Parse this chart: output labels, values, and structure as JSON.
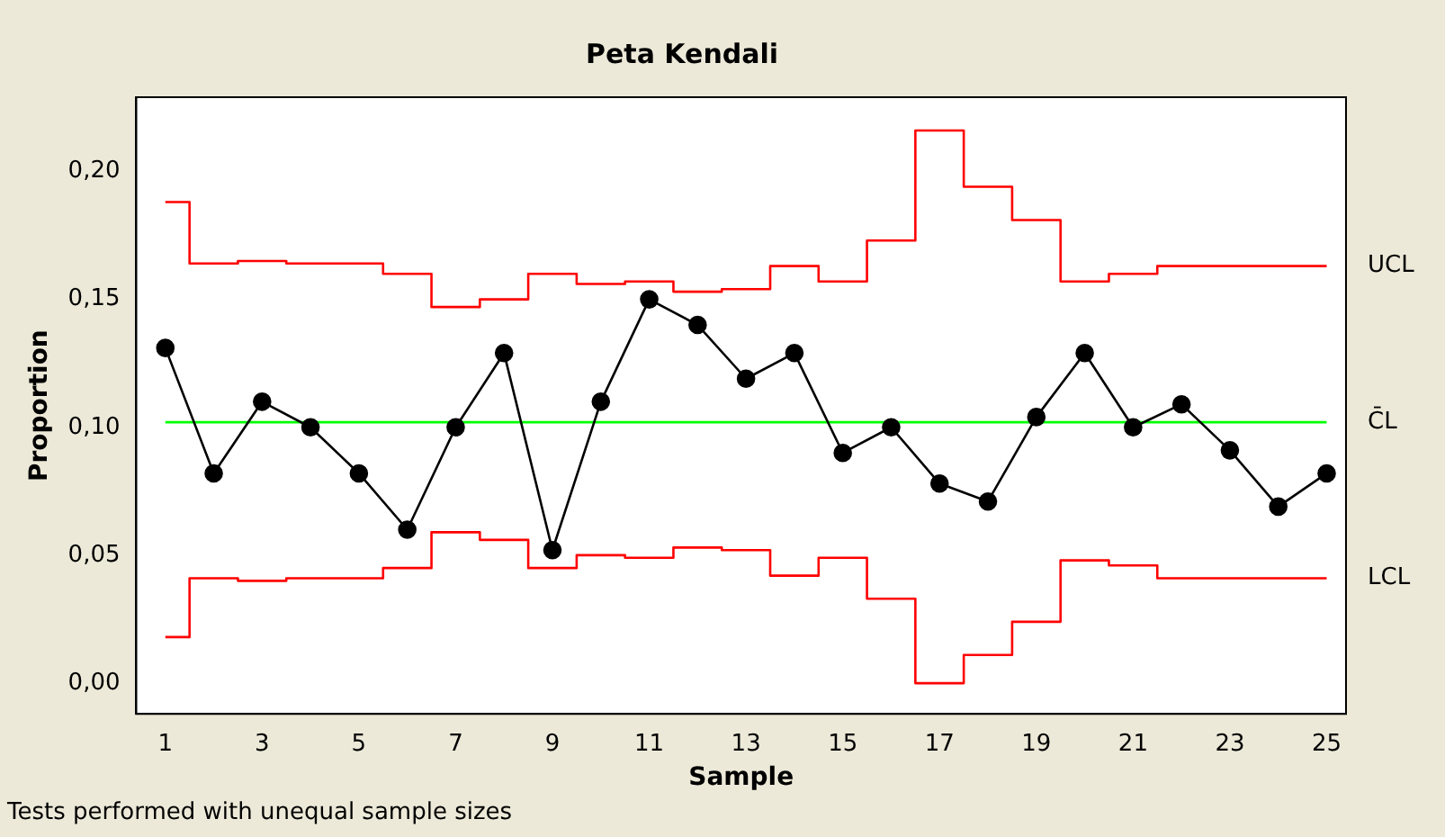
{
  "chart_data": {
    "type": "line",
    "title": "Peta Kendali",
    "xlabel": "Sample",
    "ylabel": "Proportion",
    "x": [
      1,
      2,
      3,
      4,
      5,
      6,
      7,
      8,
      9,
      10,
      11,
      12,
      13,
      14,
      15,
      16,
      17,
      18,
      19,
      20,
      21,
      22,
      23,
      24,
      25
    ],
    "xlim": [
      0.4,
      25.4
    ],
    "xticks": [
      1,
      3,
      5,
      7,
      9,
      11,
      13,
      15,
      17,
      19,
      21,
      23,
      25
    ],
    "ylim": [
      -0.012,
      0.229
    ],
    "yticks": [
      {
        "value": 0,
        "label": "0,00"
      },
      {
        "value": 0.05,
        "label": "0,05"
      },
      {
        "value": 0.1,
        "label": "0,10"
      },
      {
        "value": 0.15,
        "label": "0,15"
      },
      {
        "value": 0.2,
        "label": "0,20"
      }
    ],
    "series": [
      {
        "name": "UCL",
        "type": "step",
        "color": "#ff0000",
        "marker": "none",
        "values": [
          0.188,
          0.164,
          0.165,
          0.164,
          0.164,
          0.16,
          0.147,
          0.15,
          0.16,
          0.156,
          0.157,
          0.153,
          0.154,
          0.163,
          0.157,
          0.173,
          0.216,
          0.194,
          0.181,
          0.157,
          0.16,
          0.163,
          0.163,
          0.163,
          0.163
        ]
      },
      {
        "color": "#000000",
        "marker": "circle",
        "values": [
          0.131,
          0.082,
          0.11,
          0.1,
          0.082,
          0.06,
          0.1,
          0.129,
          0.052,
          0.11,
          0.15,
          0.14,
          0.119,
          0.129,
          0.09,
          0.1,
          0.078,
          0.071,
          0.104,
          0.129,
          0.1,
          0.109,
          0.091,
          0.069,
          0.082
        ]
      },
      {
        "name": "LCL",
        "type": "step",
        "color": "#ff0000",
        "marker": "none",
        "values": [
          0.018,
          0.041,
          0.04,
          0.041,
          0.041,
          0.045,
          0.059,
          0.056,
          0.045,
          0.05,
          0.049,
          0.053,
          0.052,
          0.042,
          0.049,
          0.033,
          0.0,
          0.011,
          0.024,
          0.048,
          0.046,
          0.041,
          0.041,
          0.041,
          0.041
        ]
      }
    ],
    "ref_lines": [
      {
        "axis": "y",
        "value": 0.102,
        "label": "C̄L",
        "color": "#00ff00"
      }
    ],
    "annotations": [
      "Tests performed with unequal sample sizes"
    ]
  }
}
